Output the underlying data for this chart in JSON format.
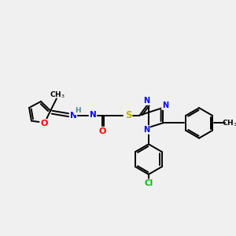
{
  "bg_color": "#f0f0f0",
  "bond_color": "#000000",
  "atom_colors": {
    "N": "#0000ff",
    "O": "#ff0000",
    "S": "#b8b800",
    "Cl": "#00bb00",
    "H": "#4a9090",
    "C": "#000000"
  },
  "figsize": [
    3.0,
    3.0
  ],
  "dpi": 100,
  "lw": 1.4,
  "fs": 7.0
}
